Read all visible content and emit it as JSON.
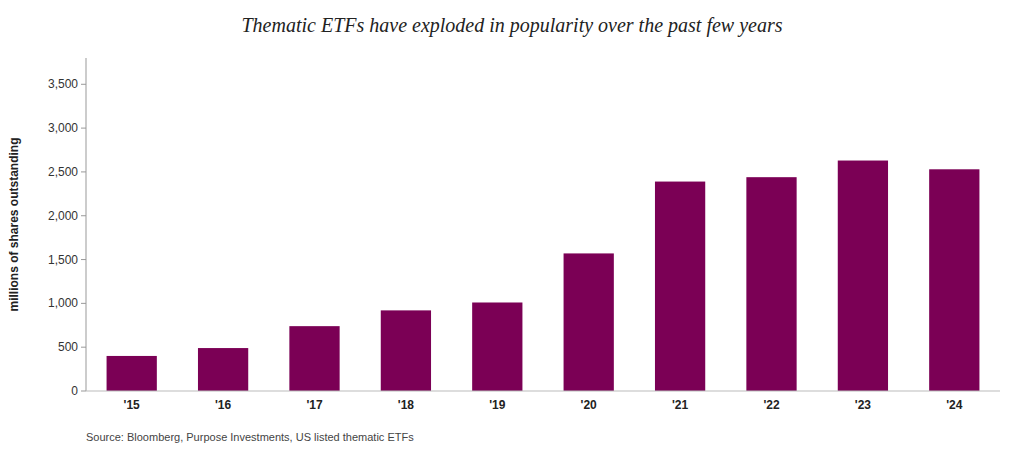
{
  "chart_data": {
    "type": "bar",
    "title": "Thematic ETFs have exploded in popularity over the past few years",
    "y_label": "millions of shares outstanding",
    "annotations": [
      "Source: Bloomberg, Purpose Investments, US listed thematic ETFs"
    ],
    "categories": [
      "'15",
      "'16",
      "'17",
      "'18",
      "'19",
      "'20",
      "'21",
      "'22",
      "'23",
      "'24"
    ],
    "values": [
      400,
      490,
      740,
      920,
      1010,
      1570,
      2390,
      2440,
      2630,
      2530
    ],
    "color": "#7B0055",
    "ylim": [
      0,
      3800
    ],
    "yticks": [
      0,
      500,
      {
        "value": 1000,
        "label": "1,000"
      },
      {
        "value": 1500,
        "label": "1,500"
      },
      {
        "value": 2000,
        "label": "2,000"
      },
      {
        "value": 2500,
        "label": "2,500"
      },
      {
        "value": 3000,
        "label": "3,000"
      },
      {
        "value": 3500,
        "label": "3,500"
      }
    ],
    "grid": false
  }
}
